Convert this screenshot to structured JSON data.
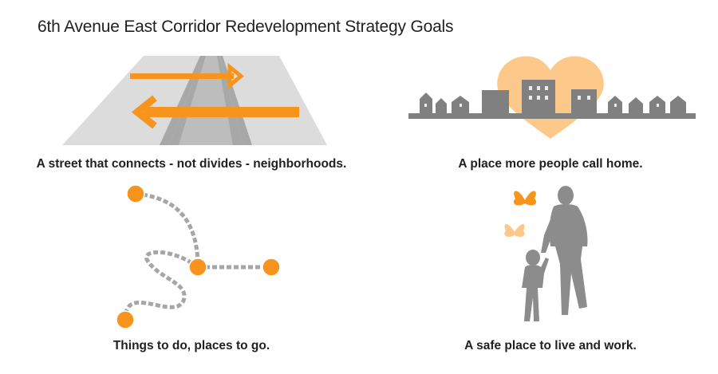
{
  "title": "6th Avenue East Corridor Redevelopment Strategy Goals",
  "goals": [
    {
      "caption": "A street that connects - not divides - neighborhoods.",
      "icon": "road-arrows-icon"
    },
    {
      "caption": "A place more people call home.",
      "icon": "heart-skyline-icon"
    },
    {
      "caption": "Things to do, places to go.",
      "icon": "path-dots-icon"
    },
    {
      "caption": "A safe place to live and work.",
      "icon": "parent-child-butterflies-icon"
    }
  ],
  "colors": {
    "orange": "#f7941d",
    "light_orange": "#fcc98a",
    "gray": "#808080",
    "light_gray": "#d9d9d9",
    "text": "#231f20"
  }
}
